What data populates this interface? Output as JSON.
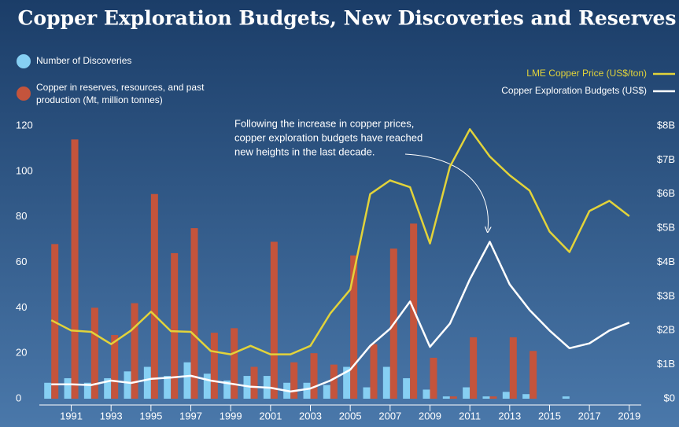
{
  "chart_data": {
    "type": "bar-line",
    "title": "Copper Exploration Budgets, New Discoveries and Reserves",
    "annotation": [
      "Following the increase in copper prices,",
      "copper exploration budgets have reached",
      "new heights in the last decade."
    ],
    "x": [
      1990,
      1991,
      1992,
      1993,
      1994,
      1995,
      1996,
      1997,
      1998,
      1999,
      2000,
      2001,
      2002,
      2003,
      2004,
      2005,
      2006,
      2007,
      2008,
      2009,
      2010,
      2011,
      2012,
      2013,
      2014,
      2015,
      2016,
      2017,
      2018,
      2019
    ],
    "xlim": [
      1989.4,
      2019.6
    ],
    "xticks": [
      1991,
      1993,
      1995,
      1997,
      1999,
      2001,
      2003,
      2005,
      2007,
      2009,
      2011,
      2013,
      2015,
      2017,
      2019
    ],
    "ylim": [
      0,
      120
    ],
    "yticks": [
      0,
      20,
      40,
      60,
      80,
      100,
      120
    ],
    "y2lim": [
      0,
      8
    ],
    "y2ticks": [
      {
        "value": 0,
        "label": "$0"
      },
      {
        "value": 1,
        "label": "$1B"
      },
      {
        "value": 2,
        "label": "$2B"
      },
      {
        "value": 3,
        "label": "$3B"
      },
      {
        "value": 4,
        "label": "$4B"
      },
      {
        "value": 5,
        "label": "$5B"
      },
      {
        "value": 6,
        "label": "$6B"
      },
      {
        "value": 7,
        "label": "$7B"
      },
      {
        "value": 8,
        "label": "$8B"
      }
    ],
    "series": [
      {
        "name": "Number of Discoveries",
        "kind": "bar",
        "color": "#86cff3",
        "values": [
          7,
          9,
          7,
          9,
          12,
          14,
          10,
          16,
          11,
          8,
          10,
          10,
          7,
          7,
          6,
          14,
          5,
          14,
          9,
          4,
          1,
          5,
          1,
          3,
          2,
          0,
          1,
          null,
          null,
          null
        ]
      },
      {
        "name": "Copper in reserves, resources, and past production (Mt, million tonnes)",
        "kind": "bar",
        "color": "#c4543c",
        "values": [
          68,
          114,
          40,
          28,
          42,
          90,
          64,
          75,
          29,
          31,
          14,
          69,
          16,
          20,
          15,
          63,
          24,
          66,
          77,
          18,
          1,
          27,
          1,
          27,
          21,
          0,
          0,
          null,
          null,
          null
        ]
      },
      {
        "name": "LME Copper Price (US$/ton)",
        "kind": "line",
        "axis": "y2",
        "color": "#e2d33a",
        "values": [
          2.3,
          2.0,
          1.96,
          1.6,
          2.0,
          2.55,
          1.98,
          1.96,
          1.4,
          1.3,
          1.55,
          1.3,
          1.3,
          1.55,
          2.5,
          3.2,
          6.0,
          6.4,
          6.2,
          4.55,
          6.8,
          7.9,
          7.1,
          6.55,
          6.1,
          4.9,
          4.3,
          5.5,
          5.8,
          5.35
        ]
      },
      {
        "name": "Copper Exploration  Budgets (US$)",
        "kind": "line",
        "axis": "y2",
        "color": "#ffffff",
        "values": [
          0.42,
          0.42,
          0.4,
          0.53,
          0.46,
          0.58,
          0.62,
          0.67,
          0.53,
          0.44,
          0.35,
          0.32,
          0.21,
          0.3,
          0.53,
          0.85,
          1.55,
          2.05,
          2.85,
          1.52,
          2.2,
          3.5,
          4.6,
          3.35,
          2.6,
          2.0,
          1.48,
          1.62,
          2.0,
          2.23
        ]
      }
    ]
  }
}
